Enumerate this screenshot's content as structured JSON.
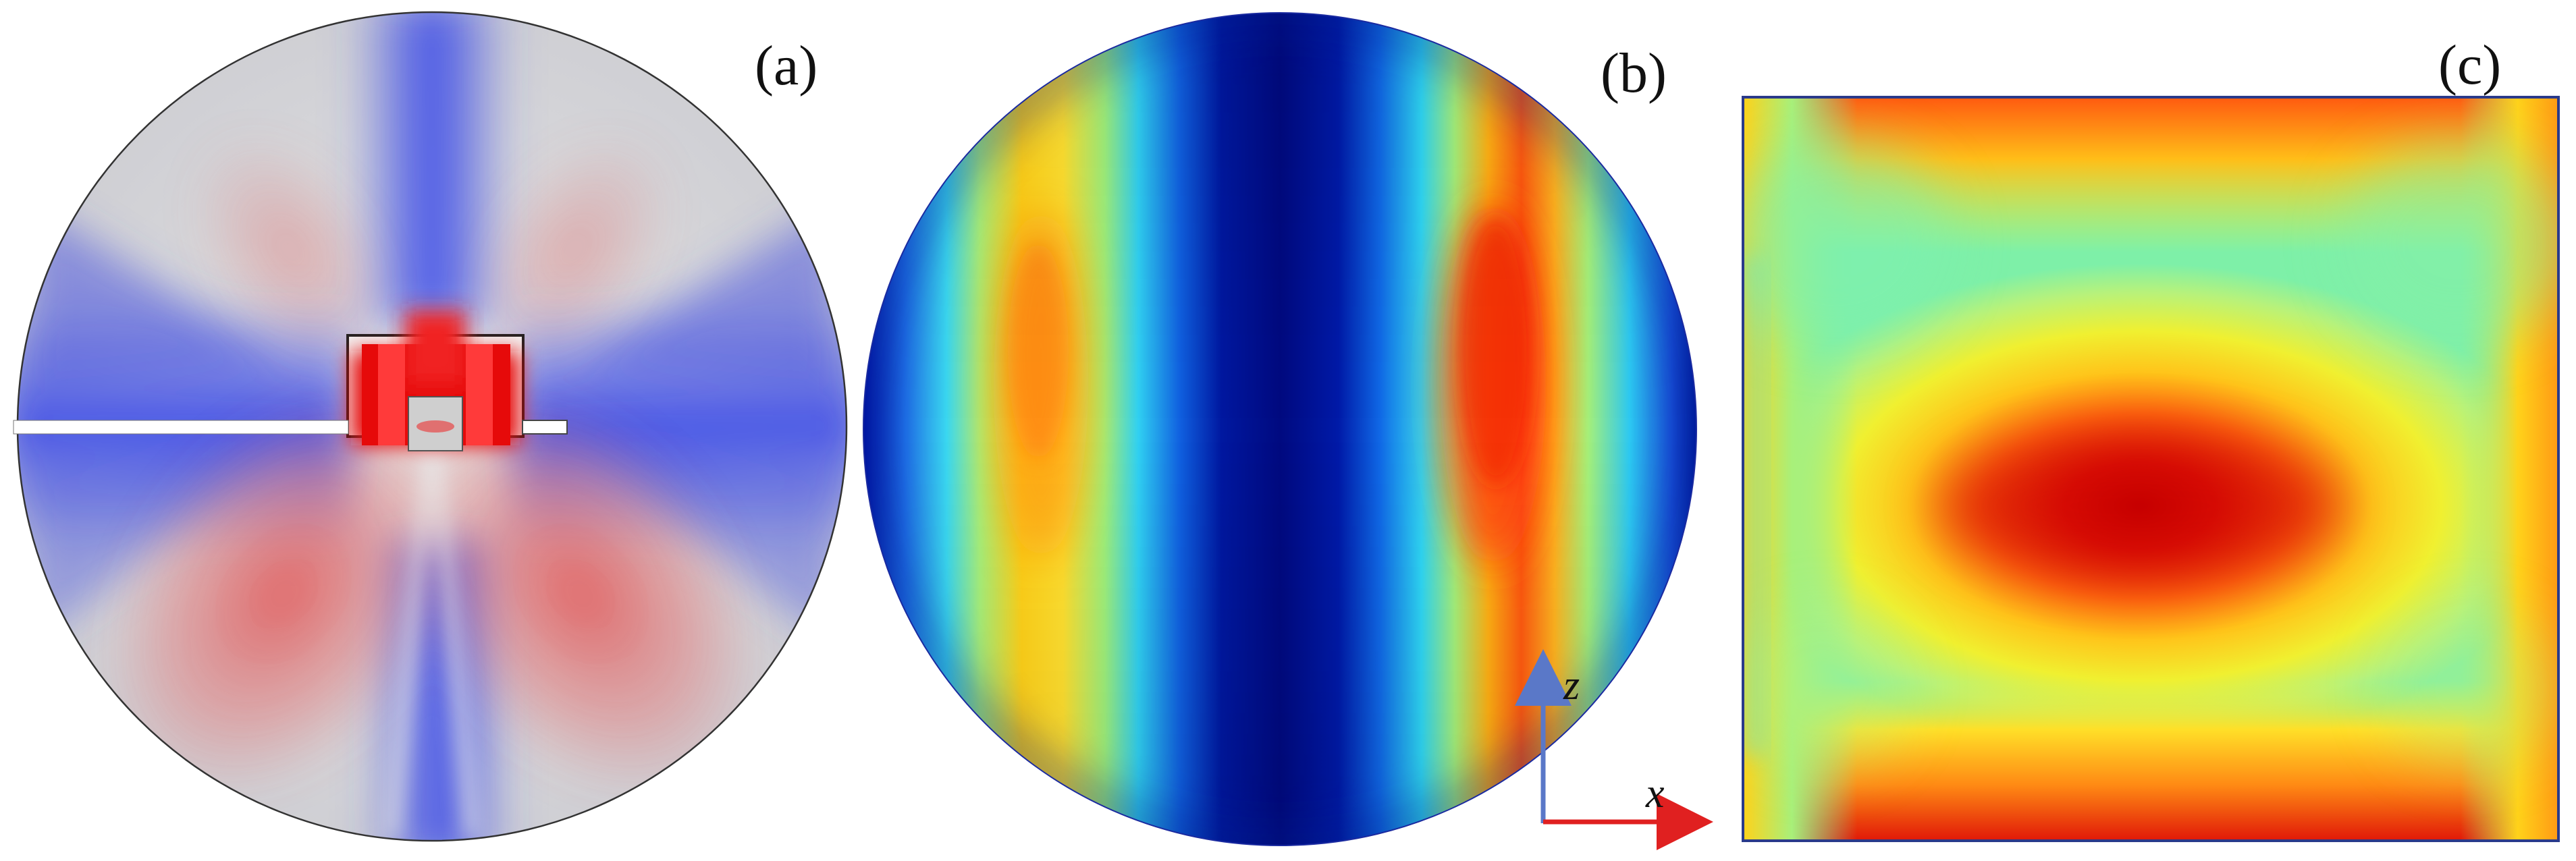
{
  "panels": [
    {
      "id": "a",
      "label": "(a)",
      "shape": "circle",
      "colormap": "blue-white-red"
    },
    {
      "id": "b",
      "label": "(b)",
      "shape": "circle",
      "colormap": "jet"
    },
    {
      "id": "c",
      "label": "(c)",
      "shape": "square",
      "colormap": "jet"
    }
  ],
  "axes": {
    "vertical": "z",
    "horizontal": "x"
  },
  "colors": {
    "cool": "#2f3fe0",
    "neutral": "#d9d9d9",
    "hot": "#e01010",
    "jet_dark_blue": "#001080",
    "axis_z_arrow": "#5a78c8",
    "axis_x_arrow": "#e02020"
  }
}
